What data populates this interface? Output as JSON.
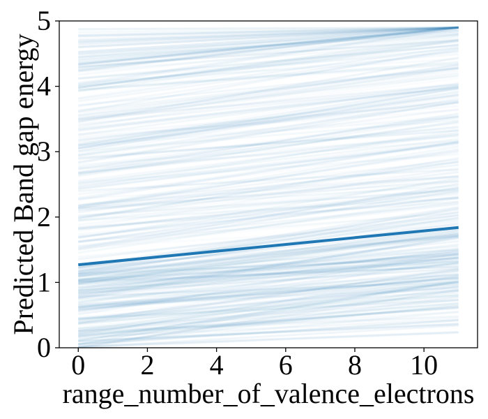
{
  "chart_data": {
    "type": "line",
    "title": "",
    "xlabel": "range_number_of_valence_electrons",
    "ylabel": "Predicted Band gap energy",
    "xlim": [
      -0.55,
      11.55
    ],
    "ylim": [
      0,
      5
    ],
    "xticks": [
      "0",
      "2",
      "4",
      "6",
      "8",
      "10"
    ],
    "yticks": [
      "0",
      "1",
      "2",
      "3",
      "4",
      "5"
    ],
    "grid": false,
    "legend": "none",
    "series": [
      {
        "x": [
          0,
          11
        ],
        "y": [
          1.27,
          1.84
        ],
        "color": "#1f77b4"
      }
    ],
    "ice_lines": {
      "color": "#1f77b4",
      "x_range": [
        0,
        11
      ],
      "y_range": [
        0,
        4.9
      ],
      "description_free_note": ""
    }
  }
}
